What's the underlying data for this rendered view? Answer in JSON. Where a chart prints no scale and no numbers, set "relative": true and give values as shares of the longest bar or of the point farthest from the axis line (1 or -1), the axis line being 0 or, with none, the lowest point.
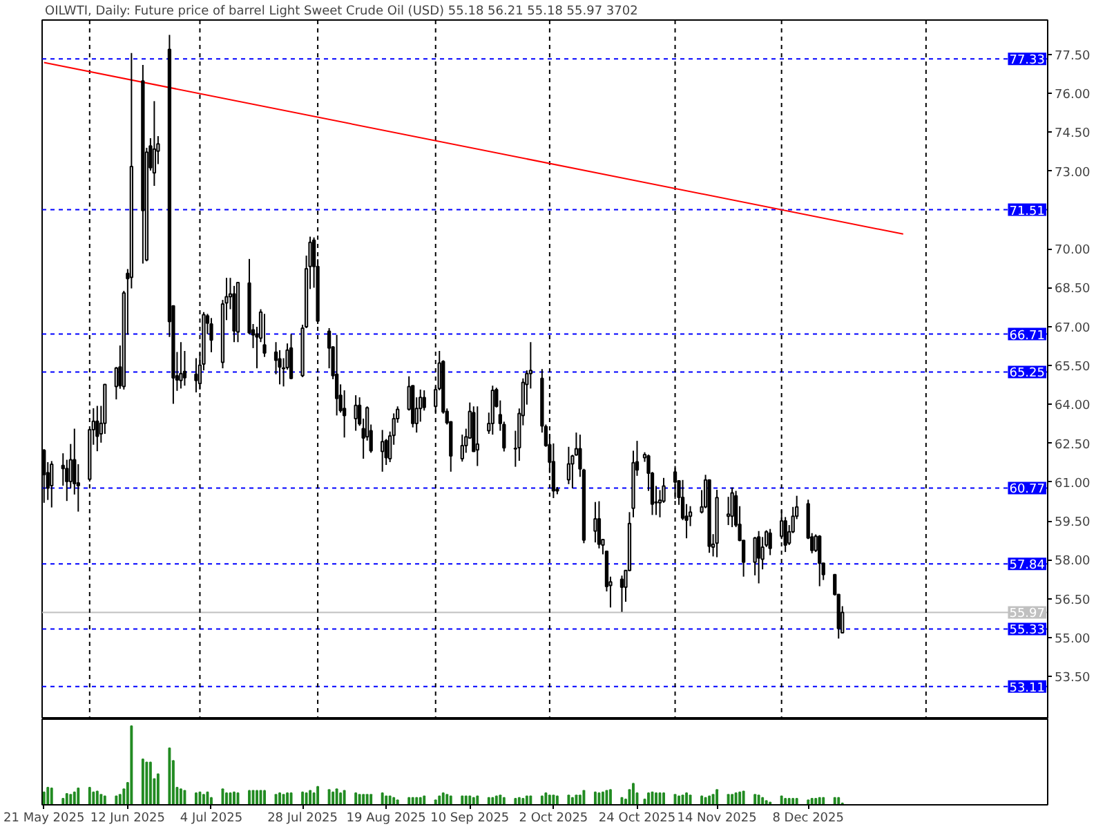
{
  "chart_data": [
    {
      "type": "candlestick",
      "title": "OILWTI, Daily: Future price of barrel Light Sweet Crude Oil (USD) 55.18 56.21 55.18 55.97 3702",
      "color": "#000000",
      "tick_labels": "y",
      "x": [
        "2025-05-21",
        "2025-05-22",
        "2025-05-23",
        "2025-05-26",
        "2025-05-27",
        "2025-05-28",
        "2025-05-29",
        "2025-05-30",
        "2025-06-02",
        "2025-06-03",
        "2025-06-04",
        "2025-06-05",
        "2025-06-06",
        "2025-06-09",
        "2025-06-10",
        "2025-06-11",
        "2025-06-12",
        "2025-06-13",
        "2025-06-16",
        "2025-06-17",
        "2025-06-18",
        "2025-06-19",
        "2025-06-20",
        "2025-06-23",
        "2025-06-24",
        "2025-06-25",
        "2025-06-26",
        "2025-06-27",
        "2025-06-30",
        "2025-07-01",
        "2025-07-02",
        "2025-07-03",
        "2025-07-04",
        "2025-07-07",
        "2025-07-08",
        "2025-07-09",
        "2025-07-10",
        "2025-07-11",
        "2025-07-14",
        "2025-07-15",
        "2025-07-16",
        "2025-07-17",
        "2025-07-18",
        "2025-07-21",
        "2025-07-22",
        "2025-07-23",
        "2025-07-24",
        "2025-07-25",
        "2025-07-28",
        "2025-07-29",
        "2025-07-30",
        "2025-07-31",
        "2025-08-01",
        "2025-08-04",
        "2025-08-05",
        "2025-08-06",
        "2025-08-07",
        "2025-08-08",
        "2025-08-11",
        "2025-08-12",
        "2025-08-13",
        "2025-08-14",
        "2025-08-15",
        "2025-08-18",
        "2025-08-19",
        "2025-08-20",
        "2025-08-21",
        "2025-08-22",
        "2025-08-25",
        "2025-08-26",
        "2025-08-27",
        "2025-08-28",
        "2025-08-29",
        "2025-09-01",
        "2025-09-02",
        "2025-09-03",
        "2025-09-04",
        "2025-09-05",
        "2025-09-08",
        "2025-09-09",
        "2025-09-10",
        "2025-09-11",
        "2025-09-12",
        "2025-09-15",
        "2025-09-16",
        "2025-09-17",
        "2025-09-18",
        "2025-09-19",
        "2025-09-22",
        "2025-09-23",
        "2025-09-24",
        "2025-09-25",
        "2025-09-26",
        "2025-09-29",
        "2025-09-30",
        "2025-10-01",
        "2025-10-02",
        "2025-10-03",
        "2025-10-06",
        "2025-10-07",
        "2025-10-08",
        "2025-10-09",
        "2025-10-10",
        "2025-10-13",
        "2025-10-14",
        "2025-10-15",
        "2025-10-16",
        "2025-10-17",
        "2025-10-20",
        "2025-10-21",
        "2025-10-22",
        "2025-10-23",
        "2025-10-24",
        "2025-10-26",
        "2025-10-27",
        "2025-10-28",
        "2025-10-29",
        "2025-10-30",
        "2025-10-31",
        "2025-11-03",
        "2025-11-04",
        "2025-11-05",
        "2025-11-06",
        "2025-11-07",
        "2025-11-10",
        "2025-11-11",
        "2025-11-12",
        "2025-11-13",
        "2025-11-14",
        "2025-11-17",
        "2025-11-18",
        "2025-11-19",
        "2025-11-20",
        "2025-11-21",
        "2025-11-24",
        "2025-11-25",
        "2025-11-26",
        "2025-11-27",
        "2025-11-28",
        "2025-12-01",
        "2025-12-02",
        "2025-12-03",
        "2025-12-04",
        "2025-12-05",
        "2025-12-08",
        "2025-12-09",
        "2025-12-10",
        "2025-12-11",
        "2025-12-12",
        "2025-12-15",
        "2025-12-16",
        "2025-12-17"
      ],
      "ohlc": [
        [
          62.23,
          62.27,
          60.2,
          61.29
        ],
        [
          61.36,
          61.77,
          60.31,
          60.77
        ],
        [
          60.86,
          61.81,
          60.02,
          61.69
        ],
        [
          61.64,
          62.11,
          60.86,
          61.52
        ],
        [
          61.52,
          61.86,
          60.27,
          61.02
        ],
        [
          61.02,
          62.47,
          60.77,
          61.86
        ],
        [
          61.86,
          63.06,
          60.52,
          60.94
        ],
        [
          60.97,
          61.69,
          59.86,
          60.86
        ],
        [
          61.11,
          63.06,
          61.02,
          63.02
        ],
        [
          63.02,
          63.85,
          62.44,
          63.35
        ],
        [
          63.35,
          63.94,
          62.19,
          62.77
        ],
        [
          62.86,
          63.94,
          62.52,
          63.27
        ],
        [
          63.27,
          64.77,
          62.86,
          64.77
        ],
        [
          64.69,
          65.44,
          64.19,
          65.4
        ],
        [
          65.44,
          66.27,
          64.6,
          64.72
        ],
        [
          64.69,
          68.38,
          64.57,
          68.3
        ],
        [
          69.05,
          69.22,
          66.69,
          68.85
        ],
        [
          68.9,
          77.56,
          68.47,
          73.18
        ],
        [
          76.48,
          77.1,
          69.43,
          71.48
        ],
        [
          69.57,
          73.9,
          69.52,
          73.73
        ],
        [
          73.97,
          74.27,
          73.02,
          73.13
        ],
        [
          72.93,
          75.7,
          72.43,
          73.85
        ],
        [
          73.77,
          74.35,
          73.27,
          74.05
        ],
        [
          77.7,
          78.26,
          66.6,
          67.19
        ],
        [
          67.8,
          67.8,
          64.02,
          65.02
        ],
        [
          65.1,
          66.02,
          64.52,
          64.94
        ],
        [
          64.92,
          66.4,
          64.61,
          65.19
        ],
        [
          65.27,
          66.06,
          64.72,
          65.03
        ],
        [
          65.16,
          65.78,
          64.46,
          64.92
        ],
        [
          64.8,
          66.01,
          64.57,
          65.51
        ],
        [
          65.55,
          67.56,
          65.31,
          67.46
        ],
        [
          67.41,
          67.49,
          66.71,
          67.13
        ],
        [
          67.1,
          67.33,
          66.01,
          66.48
        ],
        [
          65.62,
          68.03,
          65.39,
          67.87
        ],
        [
          67.91,
          68.88,
          67.25,
          68.15
        ],
        [
          68.15,
          68.88,
          67.67,
          68.26
        ],
        [
          68.26,
          68.57,
          66.4,
          66.83
        ],
        [
          66.79,
          68.7,
          66.4,
          68.7
        ],
        [
          68.68,
          69.61,
          66.71,
          66.76
        ],
        [
          66.87,
          67.1,
          66.17,
          66.68
        ],
        [
          66.71,
          66.99,
          65.39,
          66.6
        ],
        [
          66.55,
          67.67,
          66.4,
          67.56
        ],
        [
          66.29,
          67.49,
          65.83,
          65.98
        ],
        [
          66.01,
          66.4,
          65.16,
          65.7
        ],
        [
          65.75,
          66.09,
          64.77,
          65.44
        ],
        [
          65.4,
          65.78,
          64.69,
          65.38
        ],
        [
          65.42,
          66.35,
          65.34,
          66.09
        ],
        [
          66.17,
          66.71,
          64.97,
          65.0
        ],
        [
          65.11,
          67.07,
          65.05,
          66.94
        ],
        [
          66.99,
          69.74,
          66.94,
          69.23
        ],
        [
          69.32,
          70.47,
          68.45,
          70.25
        ],
        [
          70.33,
          70.44,
          68.5,
          69.32
        ],
        [
          69.32,
          69.6,
          67.1,
          67.21
        ],
        [
          66.82,
          66.94,
          65.39,
          66.17
        ],
        [
          66.21,
          66.24,
          64.97,
          65.11
        ],
        [
          65.16,
          66.68,
          63.57,
          64.23
        ],
        [
          64.35,
          64.77,
          63.68,
          63.76
        ],
        [
          63.84,
          64.54,
          62.72,
          63.57
        ],
        [
          63.45,
          64.35,
          62.98,
          63.96
        ],
        [
          63.96,
          64.27,
          63.17,
          63.25
        ],
        [
          63.06,
          63.45,
          61.9,
          62.7
        ],
        [
          62.75,
          63.92,
          62.6,
          63.87
        ],
        [
          62.98,
          63.22,
          62.13,
          62.21
        ],
        [
          62.18,
          63.01,
          61.4,
          62.56
        ],
        [
          62.6,
          62.66,
          61.66,
          61.94
        ],
        [
          61.9,
          62.95,
          61.77,
          62.78
        ],
        [
          62.8,
          63.65,
          62.44,
          63.45
        ],
        [
          63.45,
          63.92,
          63.29,
          63.81
        ],
        [
          63.81,
          65.08,
          63.76,
          64.69
        ],
        [
          64.72,
          64.72,
          63.11,
          63.26
        ],
        [
          63.26,
          64.27,
          62.91,
          63.84
        ],
        [
          63.84,
          64.57,
          63.33,
          64.27
        ],
        [
          64.26,
          64.54,
          63.76,
          63.88
        ],
        [
          63.92,
          64.69,
          63.68,
          64.57
        ],
        [
          64.61,
          66.06,
          64.54,
          65.59
        ],
        [
          65.65,
          65.7,
          63.64,
          63.71
        ],
        [
          63.73,
          63.84,
          63.22,
          63.29
        ],
        [
          63.33,
          63.33,
          61.4,
          62.01
        ],
        [
          61.9,
          62.83,
          61.79,
          62.41
        ],
        [
          62.41,
          63.06,
          62.13,
          62.75
        ],
        [
          62.7,
          64.07,
          62.67,
          63.73
        ],
        [
          63.68,
          63.92,
          62.18,
          62.18
        ],
        [
          62.24,
          63.92,
          61.62,
          62.47
        ],
        [
          62.98,
          63.68,
          62.86,
          63.26
        ],
        [
          63.26,
          64.72,
          62.83,
          64.54
        ],
        [
          64.57,
          64.64,
          63.88,
          63.92
        ],
        [
          63.6,
          64.15,
          62.98,
          63.26
        ],
        [
          63.22,
          63.33,
          62.18,
          62.32
        ],
        [
          62.3,
          62.98,
          61.59,
          62.28
        ],
        [
          62.33,
          63.84,
          61.82,
          63.65
        ],
        [
          63.57,
          65.0,
          63.19,
          64.85
        ],
        [
          64.77,
          65.31,
          63.99,
          65.19
        ],
        [
          65.19,
          66.4,
          64.61,
          65.31
        ],
        [
          65.0,
          65.36,
          62.91,
          63.17
        ],
        [
          63.14,
          63.22,
          62.36,
          62.41
        ],
        [
          62.44,
          62.86,
          61.35,
          61.77
        ],
        [
          61.79,
          62.49,
          60.38,
          60.66
        ],
        [
          60.72,
          60.81,
          60.53,
          60.66
        ],
        [
          61.09,
          62.36,
          60.92,
          61.7
        ],
        [
          61.7,
          62.05,
          60.76,
          62.01
        ],
        [
          62.05,
          62.91,
          62.02,
          62.29
        ],
        [
          62.29,
          62.83,
          61.2,
          61.51
        ],
        [
          61.46,
          61.51,
          58.64,
          58.76
        ],
        [
          59.11,
          60.23,
          58.67,
          59.58
        ],
        [
          59.58,
          60.26,
          58.44,
          58.6
        ],
        [
          58.57,
          58.78,
          58.21,
          58.78
        ],
        [
          58.33,
          58.33,
          56.78,
          56.97
        ],
        [
          57.01,
          57.35,
          56.16,
          57.15
        ],
        [
          57.25,
          57.39,
          55.99,
          56.94
        ],
        [
          56.94,
          57.59,
          56.38,
          57.59
        ],
        [
          57.59,
          59.84,
          57.56,
          59.4
        ],
        [
          59.99,
          62.21,
          59.64,
          61.75
        ],
        [
          61.78,
          62.59,
          61.24,
          61.47
        ],
        [
          61.94,
          62.15,
          61.78,
          62.06
        ],
        [
          62.01,
          62.06,
          60.66,
          61.34
        ],
        [
          61.34,
          61.39,
          59.73,
          60.15
        ],
        [
          60.23,
          60.85,
          59.73,
          60.2
        ],
        [
          60.2,
          60.69,
          59.64,
          60.3
        ],
        [
          60.26,
          61.16,
          60.2,
          60.85
        ],
        [
          61.39,
          61.62,
          60.35,
          61.0
        ],
        [
          61.05,
          61.05,
          60.12,
          60.41
        ],
        [
          60.41,
          61.08,
          59.53,
          59.61
        ],
        [
          59.68,
          60.15,
          58.83,
          59.53
        ],
        [
          59.68,
          60.07,
          59.3,
          59.84
        ],
        [
          59.84,
          60.69,
          59.79,
          60.04
        ],
        [
          60.04,
          61.28,
          59.99,
          61.08
        ],
        [
          61.08,
          61.08,
          58.27,
          58.52
        ],
        [
          58.49,
          58.99,
          58.13,
          58.6
        ],
        [
          58.64,
          60.7,
          58.1,
          60.4
        ],
        [
          59.68,
          60.43,
          59.34,
          59.76
        ],
        [
          59.68,
          60.79,
          59.26,
          60.58
        ],
        [
          60.47,
          60.66,
          59.26,
          59.34
        ],
        [
          59.37,
          60.07,
          58.72,
          58.75
        ],
        [
          58.75,
          58.75,
          57.35,
          57.91
        ],
        [
          57.91,
          58.88,
          57.4,
          58.84
        ],
        [
          58.88,
          59.11,
          57.09,
          58.07
        ],
        [
          58.02,
          58.88,
          57.63,
          58.49
        ],
        [
          58.57,
          59.14,
          58.49,
          59.08
        ],
        [
          59.03,
          59.19,
          58.18,
          58.44
        ],
        [
          58.91,
          59.92,
          58.8,
          59.5
        ],
        [
          59.5,
          59.65,
          58.3,
          58.57
        ],
        [
          58.64,
          59.34,
          58.57,
          59.08
        ],
        [
          59.08,
          60.04,
          59.03,
          59.68
        ],
        [
          59.68,
          60.47,
          59.57,
          60.04
        ],
        [
          60.16,
          60.32,
          58.8,
          58.84
        ],
        [
          58.88,
          59.03,
          58.25,
          58.36
        ],
        [
          58.36,
          58.98,
          58.3,
          58.91
        ],
        [
          58.91,
          58.95,
          56.98,
          57.87
        ],
        [
          57.87,
          57.87,
          57.22,
          57.43
        ],
        [
          57.43,
          57.43,
          56.62,
          56.66
        ],
        [
          56.66,
          56.66,
          54.96,
          55.35
        ],
        [
          55.18,
          56.21,
          55.18,
          55.97
        ]
      ],
      "series": [
        {
          "type": "line",
          "x": [
            "2025-05-21",
            "2026-01-02"
          ],
          "values": [
            77.19,
            70.57
          ],
          "color": "#ff0000"
        }
      ],
      "xlim": [
        "2025-05-20T12:00",
        "2026-02-09"
      ],
      "ylim": [
        51.85,
        78.83
      ],
      "yticks": [
        {
          "value": 77.5,
          "label": "77.50"
        },
        {
          "value": 76,
          "label": "76.00"
        },
        {
          "value": 74.5,
          "label": "74.50"
        },
        {
          "value": 73,
          "label": "73.00"
        },
        {
          "value": 70,
          "label": "70.00"
        },
        {
          "value": 68.5,
          "label": "68.50"
        },
        {
          "value": 67,
          "label": "67.00"
        },
        {
          "value": 65.5,
          "label": "65.50"
        },
        {
          "value": 64,
          "label": "64.00"
        },
        {
          "value": 62.5,
          "label": "62.50"
        },
        {
          "value": 61,
          "label": "61.00"
        },
        {
          "value": 59.5,
          "label": "59.50"
        },
        {
          "value": 58,
          "label": "58.00"
        },
        {
          "value": 56.5,
          "label": "56.50"
        },
        {
          "value": 55,
          "label": "55.00"
        },
        {
          "value": 53.5,
          "label": "53.50"
        }
      ],
      "ref_lines": [
        {
          "axis": "y",
          "value": 77.33,
          "label": "77.33",
          "color": "#0000ff",
          "line_style": "dashed"
        },
        {
          "axis": "y",
          "value": 71.51,
          "label": "71.51",
          "color": "#0000ff",
          "line_style": "dashed"
        },
        {
          "axis": "y",
          "value": 66.71,
          "label": "66.71",
          "color": "#0000ff",
          "line_style": "dashed"
        },
        {
          "axis": "y",
          "value": 65.25,
          "label": "65.25",
          "color": "#0000ff",
          "line_style": "dashed"
        },
        {
          "axis": "y",
          "value": 60.77,
          "label": "60.77",
          "color": "#0000ff",
          "line_style": "dashed"
        },
        {
          "axis": "y",
          "value": 57.84,
          "label": "57.84",
          "color": "#0000ff",
          "line_style": "dashed"
        },
        {
          "axis": "y",
          "value": 55.33,
          "label": "55.33",
          "color": "#0000ff",
          "line_style": "dashed"
        },
        {
          "axis": "y",
          "value": 53.11,
          "label": "53.11",
          "color": "#0000ff",
          "line_style": "dashed"
        },
        {
          "axis": "y",
          "value": 55.97,
          "label": "55.97",
          "color": "#c0c0c0",
          "line_style": "solid"
        },
        {
          "axis": "x",
          "value": "2025-06-02",
          "color": "#000000",
          "line_style": "dashed"
        },
        {
          "axis": "x",
          "value": "2025-07-01",
          "color": "#000000",
          "line_style": "dashed"
        },
        {
          "axis": "x",
          "value": "2025-08-01",
          "color": "#000000",
          "line_style": "dashed"
        },
        {
          "axis": "x",
          "value": "2025-09-01",
          "color": "#000000",
          "line_style": "dashed"
        },
        {
          "axis": "x",
          "value": "2025-10-01",
          "color": "#000000",
          "line_style": "dashed"
        },
        {
          "axis": "x",
          "value": "2025-11-03",
          "color": "#000000",
          "line_style": "dashed"
        },
        {
          "axis": "x",
          "value": "2025-12-01",
          "color": "#000000",
          "line_style": "dashed"
        },
        {
          "axis": "x",
          "value": "2026-01-08",
          "color": "#000000",
          "line_style": "dashed"
        }
      ]
    },
    {
      "type": "bar",
      "relative": true,
      "color": "#228b22",
      "xlim": [
        "2025-05-20T12:00",
        "2026-02-09"
      ],
      "xticks": [
        {
          "value": "2025-05-21",
          "label": "21 May 2025"
        },
        {
          "value": "2025-06-12",
          "label": "12 Jun 2025"
        },
        {
          "value": "2025-07-04",
          "label": "4 Jul 2025"
        },
        {
          "value": "2025-07-28",
          "label": "28 Jul 2025"
        },
        {
          "value": "2025-08-19",
          "label": "19 Aug 2025"
        },
        {
          "value": "2025-09-10",
          "label": "10 Sep 2025"
        },
        {
          "value": "2025-10-02",
          "label": "2 Oct 2025"
        },
        {
          "value": "2025-10-24",
          "label": "24 Oct 2025"
        },
        {
          "value": "2025-11-14",
          "label": "14 Nov 2025"
        },
        {
          "value": "2025-12-08",
          "label": "8 Dec 2025"
        }
      ],
      "x": [
        "2025-05-21",
        "2025-05-22",
        "2025-05-23",
        "2025-05-26",
        "2025-05-27",
        "2025-05-28",
        "2025-05-29",
        "2025-05-30",
        "2025-06-02",
        "2025-06-03",
        "2025-06-04",
        "2025-06-05",
        "2025-06-06",
        "2025-06-09",
        "2025-06-10",
        "2025-06-11",
        "2025-06-12",
        "2025-06-13",
        "2025-06-16",
        "2025-06-17",
        "2025-06-18",
        "2025-06-19",
        "2025-06-20",
        "2025-06-23",
        "2025-06-24",
        "2025-06-25",
        "2025-06-26",
        "2025-06-27",
        "2025-06-30",
        "2025-07-01",
        "2025-07-02",
        "2025-07-03",
        "2025-07-04",
        "2025-07-07",
        "2025-07-08",
        "2025-07-09",
        "2025-07-10",
        "2025-07-11",
        "2025-07-14",
        "2025-07-15",
        "2025-07-16",
        "2025-07-17",
        "2025-07-18",
        "2025-07-21",
        "2025-07-22",
        "2025-07-23",
        "2025-07-24",
        "2025-07-25",
        "2025-07-28",
        "2025-07-29",
        "2025-07-30",
        "2025-07-31",
        "2025-08-01",
        "2025-08-04",
        "2025-08-05",
        "2025-08-06",
        "2025-08-07",
        "2025-08-08",
        "2025-08-11",
        "2025-08-12",
        "2025-08-13",
        "2025-08-14",
        "2025-08-15",
        "2025-08-18",
        "2025-08-19",
        "2025-08-20",
        "2025-08-21",
        "2025-08-22",
        "2025-08-25",
        "2025-08-26",
        "2025-08-27",
        "2025-08-28",
        "2025-08-29",
        "2025-09-01",
        "2025-09-02",
        "2025-09-03",
        "2025-09-04",
        "2025-09-05",
        "2025-09-08",
        "2025-09-09",
        "2025-09-10",
        "2025-09-11",
        "2025-09-12",
        "2025-09-15",
        "2025-09-16",
        "2025-09-17",
        "2025-09-18",
        "2025-09-19",
        "2025-09-22",
        "2025-09-23",
        "2025-09-24",
        "2025-09-25",
        "2025-09-26",
        "2025-09-29",
        "2025-09-30",
        "2025-10-01",
        "2025-10-02",
        "2025-10-03",
        "2025-10-06",
        "2025-10-07",
        "2025-10-08",
        "2025-10-09",
        "2025-10-10",
        "2025-10-13",
        "2025-10-14",
        "2025-10-15",
        "2025-10-16",
        "2025-10-17",
        "2025-10-20",
        "2025-10-21",
        "2025-10-22",
        "2025-10-23",
        "2025-10-24",
        "2025-10-26",
        "2025-10-27",
        "2025-10-28",
        "2025-10-29",
        "2025-10-30",
        "2025-10-31",
        "2025-11-03",
        "2025-11-04",
        "2025-11-05",
        "2025-11-06",
        "2025-11-07",
        "2025-11-10",
        "2025-11-11",
        "2025-11-12",
        "2025-11-13",
        "2025-11-14",
        "2025-11-17",
        "2025-11-18",
        "2025-11-19",
        "2025-11-20",
        "2025-11-21",
        "2025-11-24",
        "2025-11-25",
        "2025-11-26",
        "2025-11-27",
        "2025-11-28",
        "2025-12-01",
        "2025-12-02",
        "2025-12-03",
        "2025-12-04",
        "2025-12-05",
        "2025-12-08",
        "2025-12-09",
        "2025-12-10",
        "2025-12-11",
        "2025-12-12",
        "2025-12-15",
        "2025-12-16",
        "2025-12-17"
      ],
      "values": [
        0.16,
        0.22,
        0.21,
        0.08,
        0.14,
        0.13,
        0.16,
        0.21,
        0.22,
        0.16,
        0.17,
        0.13,
        0.11,
        0.11,
        0.13,
        0.2,
        0.28,
        1,
        0.58,
        0.54,
        0.54,
        0.33,
        0.39,
        0.72,
        0.56,
        0.22,
        0.2,
        0.18,
        0.15,
        0.16,
        0.13,
        0.16,
        0.09,
        0.2,
        0.15,
        0.15,
        0.16,
        0.15,
        0.18,
        0.18,
        0.18,
        0.18,
        0.18,
        0.13,
        0.15,
        0.13,
        0.15,
        0.15,
        0.16,
        0.15,
        0.18,
        0.15,
        0.23,
        0.19,
        0.16,
        0.2,
        0.15,
        0.18,
        0.15,
        0.13,
        0.13,
        0.13,
        0.13,
        0.15,
        0.11,
        0.11,
        0.09,
        0.06,
        0.09,
        0.09,
        0.09,
        0.09,
        0.11,
        0.06,
        0.11,
        0.15,
        0.13,
        0.11,
        0.11,
        0.11,
        0.11,
        0.09,
        0.11,
        0.09,
        0.09,
        0.11,
        0.12,
        0.09,
        0.08,
        0.09,
        0.08,
        0.11,
        0.11,
        0.11,
        0.15,
        0.12,
        0.12,
        0.11,
        0.12,
        0.09,
        0.12,
        0.12,
        0.18,
        0.16,
        0.15,
        0.16,
        0.18,
        0.19,
        0.09,
        0.07,
        0.19,
        0.27,
        0.15,
        0.07,
        0.15,
        0.16,
        0.15,
        0.15,
        0.15,
        0.13,
        0.11,
        0.12,
        0.15,
        0.12,
        0.11,
        0.09,
        0.11,
        0.13,
        0.19,
        0.13,
        0.13,
        0.15,
        0.16,
        0.17,
        0.13,
        0.12,
        0.09,
        0.05,
        0.03,
        0.11,
        0.08,
        0.08,
        0.08,
        0.08,
        0.06,
        0.08,
        0.08,
        0.09,
        0.09,
        0.09,
        0.09,
        0.02
      ]
    }
  ]
}
